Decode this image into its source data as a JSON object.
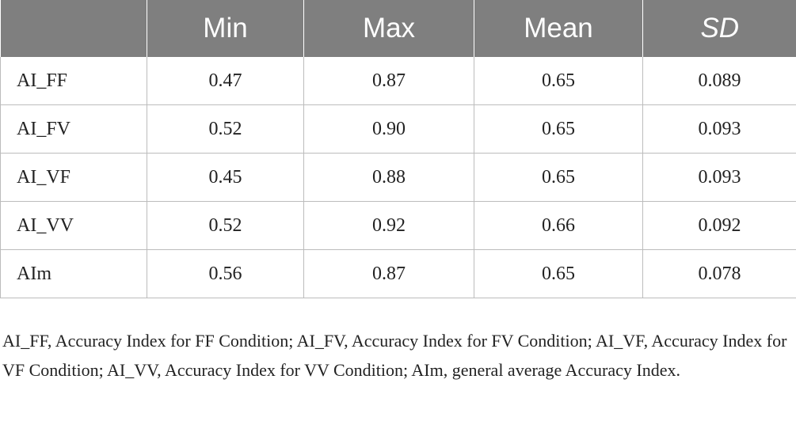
{
  "table": {
    "columns": [
      "",
      "Min",
      "Max",
      "Mean",
      "SD"
    ],
    "rows": [
      {
        "label": "AI_FF",
        "min": "0.47",
        "max": "0.87",
        "mean": "0.65",
        "sd": "0.089"
      },
      {
        "label": "AI_FV",
        "min": "0.52",
        "max": "0.90",
        "mean": "0.65",
        "sd": "0.093"
      },
      {
        "label": "AI_VF",
        "min": "0.45",
        "max": "0.88",
        "mean": "0.65",
        "sd": "0.093"
      },
      {
        "label": "AI_VV",
        "min": "0.52",
        "max": "0.92",
        "mean": "0.66",
        "sd": "0.092"
      },
      {
        "label": "AIm",
        "min": "0.56",
        "max": "0.87",
        "mean": "0.65",
        "sd": "0.078"
      }
    ],
    "colors": {
      "header_background": "#7f7f7f",
      "header_text": "#ffffff",
      "grid_lines": "#bcbcbc"
    }
  },
  "footnote": "AI_FF, Accuracy Index for FF Condition; AI_FV, Accuracy Index for FV Condition; AI_VF, Accuracy Index for VF Condition; AI_VV, Accuracy Index for VV Condition; AIm, general average Accuracy Index."
}
